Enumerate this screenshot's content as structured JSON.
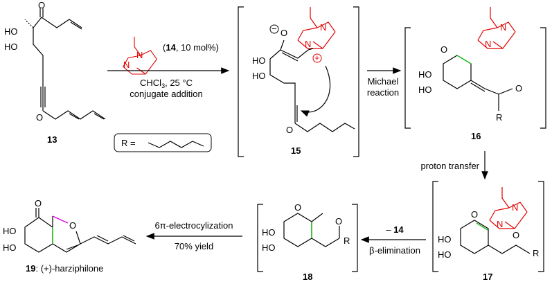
{
  "compounds": {
    "c13": {
      "label": "13"
    },
    "c15": {
      "label": "15"
    },
    "c16": {
      "label": "16"
    },
    "c17": {
      "label": "17"
    },
    "c18": {
      "label": "18"
    },
    "c19": {
      "label": "19",
      "name": ": (+)-harziphilone"
    }
  },
  "atoms": {
    "O": "O",
    "HO": "HO",
    "N": "N",
    "R": "R",
    "plus": "+",
    "minus": "−"
  },
  "step1": {
    "catalyst_num": "14",
    "catalyst_rest": ", 10 mol%)",
    "catalyst_open": "(",
    "solvent": "CHCl",
    "solvent_sub": "3",
    "temp": ", 25 °C",
    "type": "conjugate addition"
  },
  "r_def": {
    "text": "R ="
  },
  "step2": {
    "line1": "Michael",
    "line2": "reaction"
  },
  "step3": {
    "text": "proton transfer"
  },
  "step4": {
    "above": "– 14",
    "above_prefix": "– ",
    "above_num": "14",
    "below": "β-elimination"
  },
  "step5": {
    "above": "6π-electrocylization",
    "below": "70% yield"
  },
  "colors": {
    "dabco": "#e00000",
    "new_bond": "#22c022",
    "ring_bond": "#e000e0"
  }
}
